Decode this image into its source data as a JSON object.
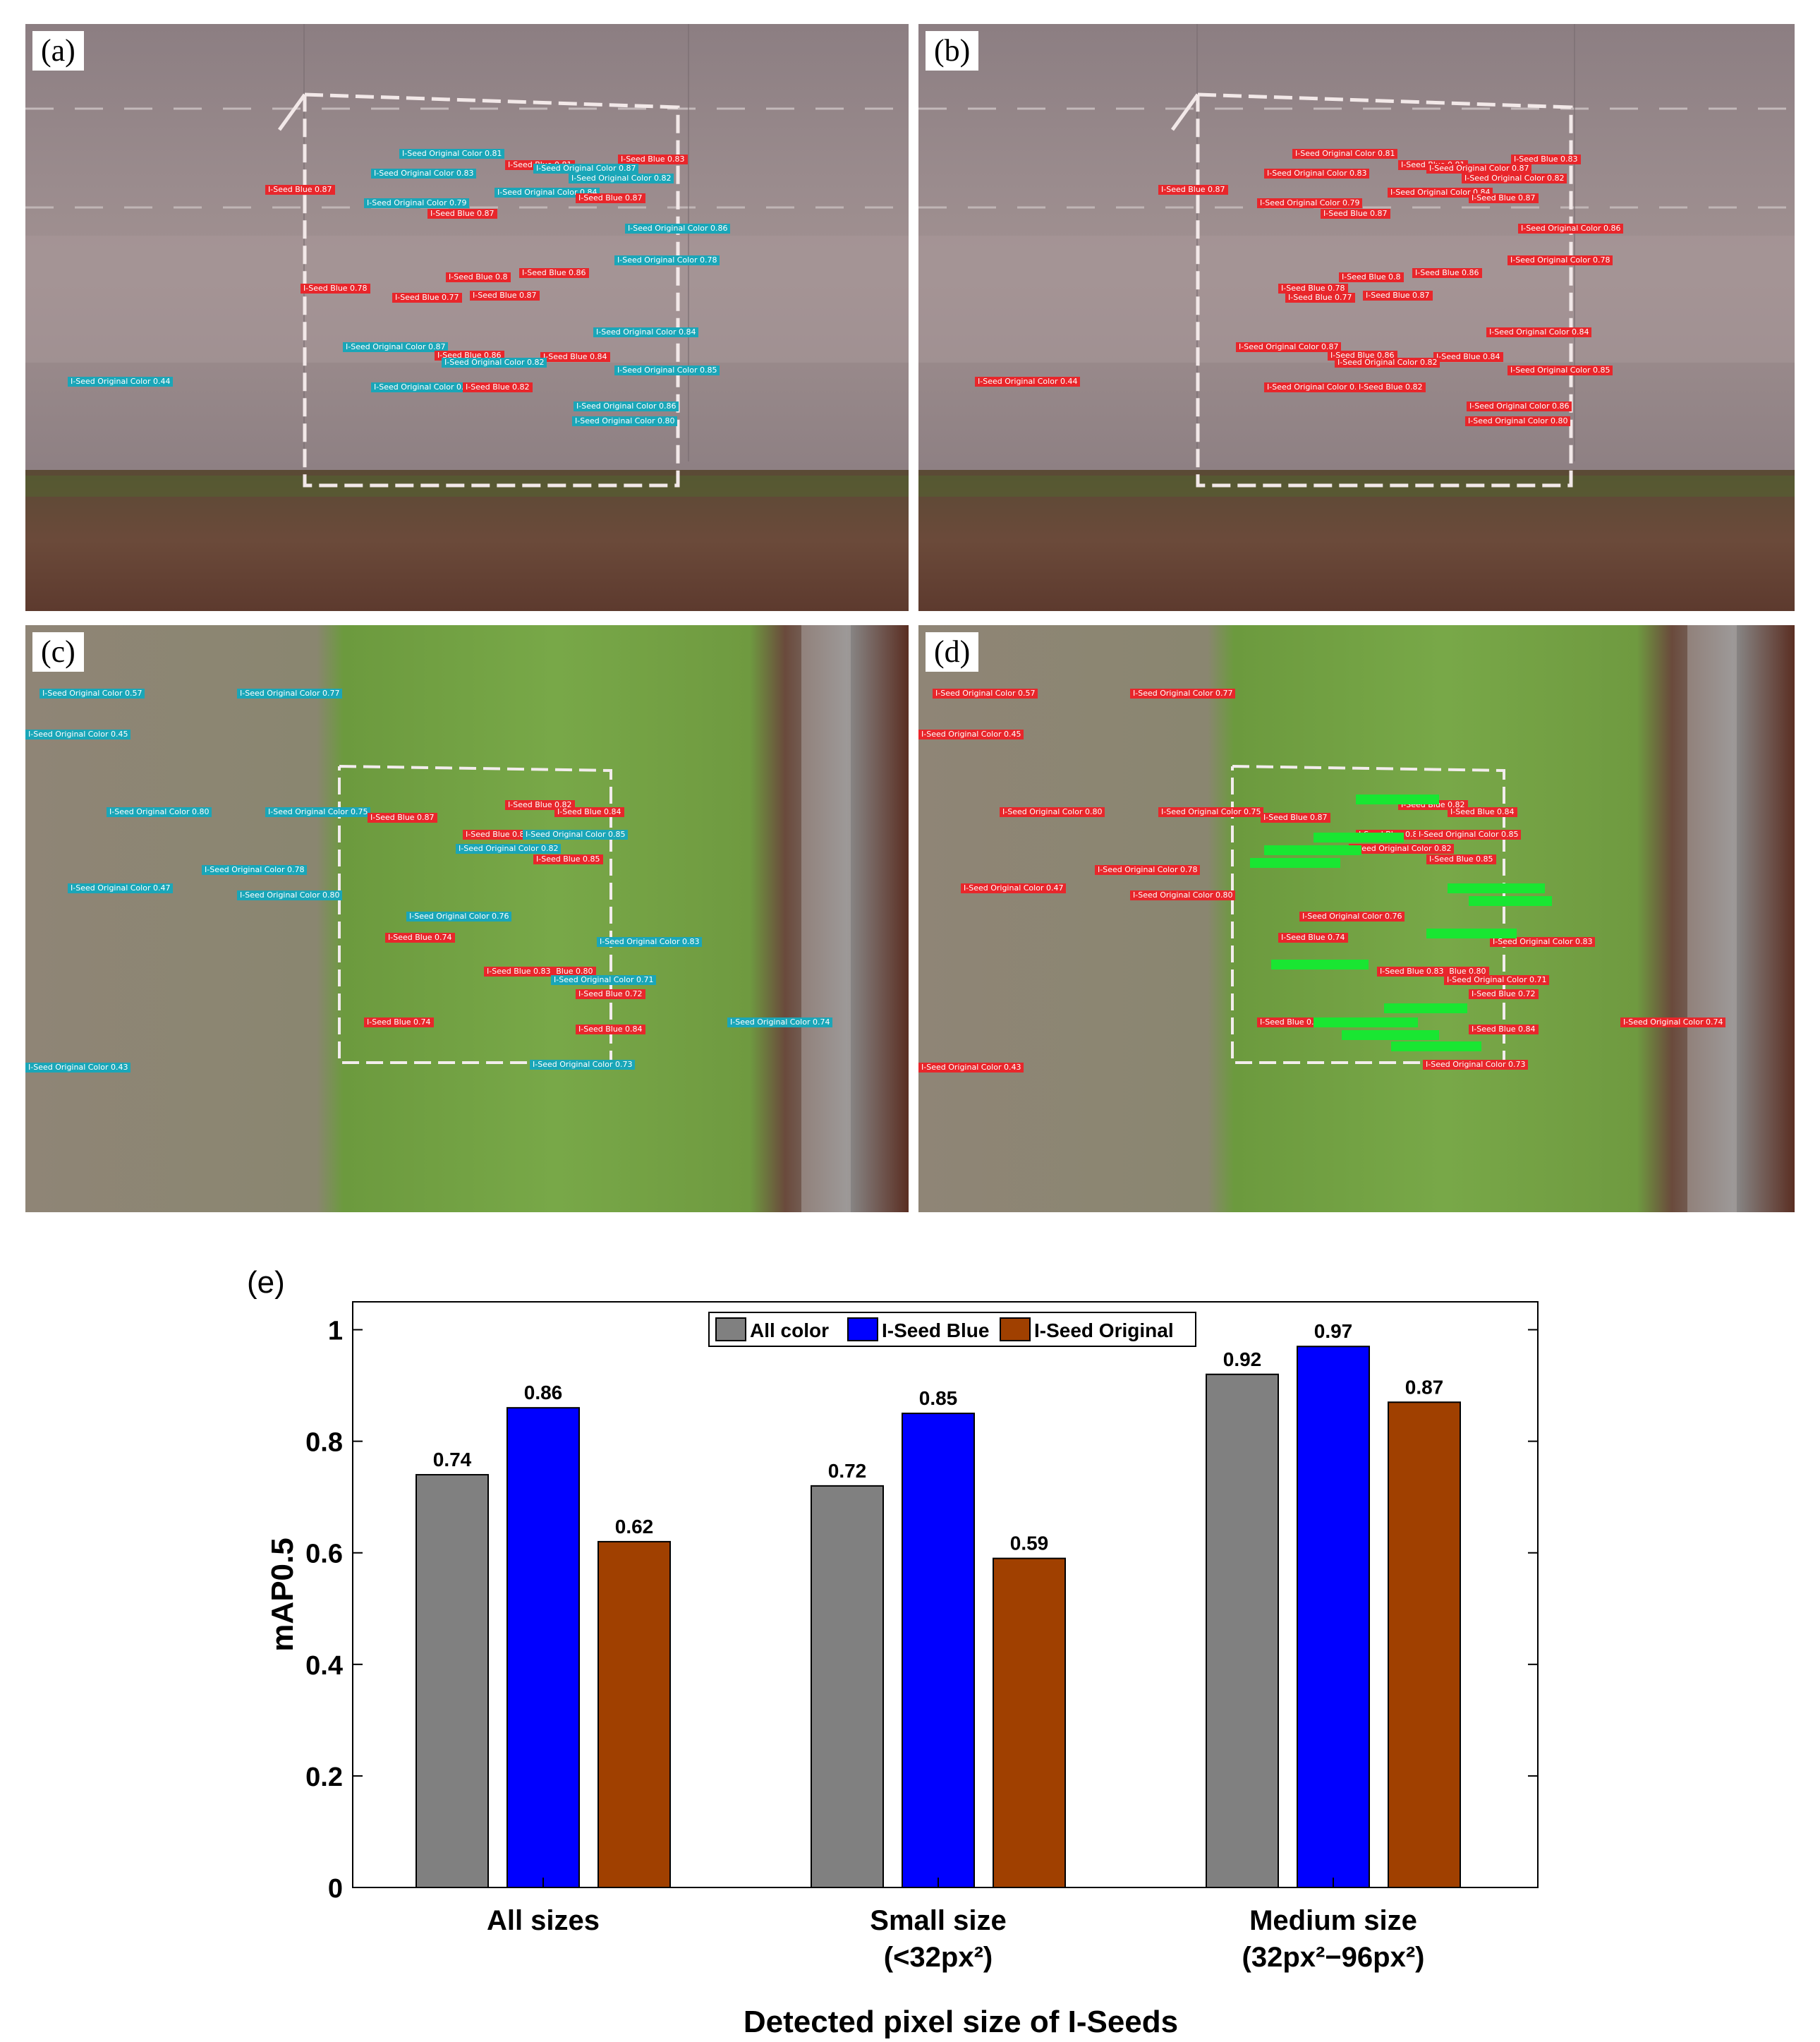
{
  "panels": {
    "a": {
      "label": "(a)",
      "detections": [
        {
          "cls": "cyan",
          "text": "I-Seed Original Color 0.81"
        },
        {
          "cls": "red",
          "text": "I-Seed Blue 0.81"
        },
        {
          "cls": "red",
          "text": "I-Seed Blue 0.83"
        },
        {
          "cls": "cyan",
          "text": "I-Seed Original Color 0.83"
        },
        {
          "cls": "cyan",
          "text": "I-Seed Original Color 0.87"
        },
        {
          "cls": "cyan",
          "text": "I-Seed Original Color 0.82"
        },
        {
          "cls": "red",
          "text": "I-Seed Blue 0.87"
        },
        {
          "cls": "cyan",
          "text": "I-Seed Original Color 0.84"
        },
        {
          "cls": "cyan",
          "text": "I-Seed Original Color 0.79"
        },
        {
          "cls": "red",
          "text": "I-Seed Blue 0.87"
        },
        {
          "cls": "red",
          "text": "I-Seed Blue 0.87"
        },
        {
          "cls": "cyan",
          "text": "I-Seed Original Color 0.86"
        },
        {
          "cls": "cyan",
          "text": "I-Seed Original Color 0.78"
        },
        {
          "cls": "red",
          "text": "I-Seed Blue 0.78"
        },
        {
          "cls": "red",
          "text": "I-Seed Blue 0.8"
        },
        {
          "cls": "red",
          "text": "I-Seed Blue 0.86"
        },
        {
          "cls": "red",
          "text": "I-Seed Blue 0.87"
        },
        {
          "cls": "red",
          "text": "I-Seed Blue 0.77"
        },
        {
          "cls": "cyan",
          "text": "I-Seed Original Color 0.84"
        },
        {
          "cls": "cyan",
          "text": "I-Seed Original Color 0.87"
        },
        {
          "cls": "red",
          "text": "I-Seed Blue 0.86"
        },
        {
          "cls": "red",
          "text": "I-Seed Blue 0.84"
        },
        {
          "cls": "cyan",
          "text": "I-Seed Original Color 0.82"
        },
        {
          "cls": "cyan",
          "text": "I-Seed Original Color 0.85"
        },
        {
          "cls": "cyan",
          "text": "I-Seed Original Color 0.44"
        },
        {
          "cls": "cyan",
          "text": "I-Seed Original Color 0.87"
        },
        {
          "cls": "red",
          "text": "I-Seed Blue 0.82"
        },
        {
          "cls": "cyan",
          "text": "I-Seed Original Color 0.86"
        },
        {
          "cls": "cyan",
          "text": "I-Seed Original Color 0.80"
        }
      ]
    },
    "b": {
      "label": "(b)",
      "detections": [
        {
          "cls": "red",
          "text": "I-Seed Original Color 0.81"
        },
        {
          "cls": "red",
          "text": "I-Seed Blue 0.81"
        },
        {
          "cls": "red",
          "text": "I-Seed Blue 0.83"
        },
        {
          "cls": "red",
          "text": "I-Seed Original Color 0.83"
        },
        {
          "cls": "red",
          "text": "I-Seed Original Color 0.87"
        },
        {
          "cls": "red",
          "text": "I-Seed Original Color 0.82"
        },
        {
          "cls": "red",
          "text": "I-Seed Blue 0.87"
        },
        {
          "cls": "red",
          "text": "I-Seed Original Color 0.84"
        },
        {
          "cls": "red",
          "text": "I-Seed Original Color 0.79"
        },
        {
          "cls": "red",
          "text": "I-Seed Blue 0.87"
        },
        {
          "cls": "red",
          "text": "I-Seed Blue 0.87"
        },
        {
          "cls": "red",
          "text": "I-Seed Original Color 0.86"
        },
        {
          "cls": "red",
          "text": "I-Seed Original Color 0.78"
        },
        {
          "cls": "red",
          "text": "I-Seed Blue 0.78"
        },
        {
          "cls": "red",
          "text": "I-Seed Blue 0.8"
        },
        {
          "cls": "red",
          "text": "I-Seed Blue 0.86"
        },
        {
          "cls": "red",
          "text": "I-Seed Blue 0.87"
        },
        {
          "cls": "red",
          "text": "I-Seed Blue 0.77"
        },
        {
          "cls": "red",
          "text": "I-Seed Original Color 0.84"
        },
        {
          "cls": "red",
          "text": "I-Seed Original Color 0.87"
        },
        {
          "cls": "red",
          "text": "I-Seed Blue 0.86"
        },
        {
          "cls": "red",
          "text": "I-Seed Blue 0.84"
        },
        {
          "cls": "red",
          "text": "I-Seed Original Color 0.82"
        },
        {
          "cls": "red",
          "text": "I-Seed Original Color 0.85"
        },
        {
          "cls": "red",
          "text": "I-Seed Original Color 0.44"
        },
        {
          "cls": "red",
          "text": "I-Seed Original Color 0.87"
        },
        {
          "cls": "red",
          "text": "I-Seed Blue 0.82"
        },
        {
          "cls": "red",
          "text": "I-Seed Original Color 0.86"
        },
        {
          "cls": "red",
          "text": "I-Seed Original Color 0.80"
        }
      ]
    },
    "c": {
      "label": "(c)",
      "detections": [
        {
          "cls": "cyan",
          "text": "I-Seed Original Color 0.57"
        },
        {
          "cls": "cyan",
          "text": "I-Seed Original Color 0.77"
        },
        {
          "cls": "cyan",
          "text": "I-Seed Original Color 0.45"
        },
        {
          "cls": "cyan",
          "text": "I-Seed Original Color 0.80"
        },
        {
          "cls": "cyan",
          "text": "I-Seed Original Color 0.75"
        },
        {
          "cls": "red",
          "text": "I-Seed Blue 0.87"
        },
        {
          "cls": "red",
          "text": "I-Seed Blue 0.82"
        },
        {
          "cls": "red",
          "text": "I-Seed Blue 0.84"
        },
        {
          "cls": "red",
          "text": "I-Seed Blue 0.83"
        },
        {
          "cls": "cyan",
          "text": "I-Seed Original Color 0.85"
        },
        {
          "cls": "cyan",
          "text": "I-Seed Original Color 0.82"
        },
        {
          "cls": "red",
          "text": "I-Seed Blue 0.85"
        },
        {
          "cls": "cyan",
          "text": "I-Seed Original Color 0.78"
        },
        {
          "cls": "cyan",
          "text": "I-Seed Original Color 0.47"
        },
        {
          "cls": "cyan",
          "text": "I-Seed Original Color 0.80"
        },
        {
          "cls": "cyan",
          "text": "I-Seed Original Color 0.76"
        },
        {
          "cls": "red",
          "text": "I-Seed Blue 0.74"
        },
        {
          "cls": "cyan",
          "text": "I-Seed Original Color 0.83"
        },
        {
          "cls": "red",
          "text": "I-Seed Blue 0.80"
        },
        {
          "cls": "red",
          "text": "I-Seed Blue 0.83"
        },
        {
          "cls": "cyan",
          "text": "I-Seed Original Color 0.71"
        },
        {
          "cls": "red",
          "text": "I-Seed Blue 0.72"
        },
        {
          "cls": "red",
          "text": "I-Seed Blue 0.74"
        },
        {
          "cls": "red",
          "text": "I-Seed Blue 0.84"
        },
        {
          "cls": "cyan",
          "text": "I-Seed Original Color 0.74"
        },
        {
          "cls": "cyan",
          "text": "I-Seed Original Color 0.43"
        },
        {
          "cls": "cyan",
          "text": "I-Seed Original Color 0.73"
        }
      ]
    },
    "d": {
      "label": "(d)",
      "detections": [
        {
          "cls": "red",
          "text": "I-Seed Original Color 0.57"
        },
        {
          "cls": "red",
          "text": "I-Seed Original Color 0.77"
        },
        {
          "cls": "red",
          "text": "I-Seed Original Color 0.45"
        },
        {
          "cls": "red",
          "text": "I-Seed Original Color 0.80"
        },
        {
          "cls": "red",
          "text": "I-Seed Original Color 0.75"
        },
        {
          "cls": "red",
          "text": "I-Seed Blue 0.87"
        },
        {
          "cls": "red",
          "text": "I-Seed Blue 0.82"
        },
        {
          "cls": "red",
          "text": "I-Seed Blue 0.84"
        },
        {
          "cls": "red",
          "text": "I-Seed Blue 0.83"
        },
        {
          "cls": "red",
          "text": "I-Seed Original Color 0.85"
        },
        {
          "cls": "red",
          "text": "I-Seed Original Color 0.82"
        },
        {
          "cls": "red",
          "text": "I-Seed Blue 0.85"
        },
        {
          "cls": "red",
          "text": "I-Seed Original Color 0.78"
        },
        {
          "cls": "red",
          "text": "I-Seed Original Color 0.47"
        },
        {
          "cls": "red",
          "text": "I-Seed Original Color 0.80"
        },
        {
          "cls": "red",
          "text": "I-Seed Original Color 0.76"
        },
        {
          "cls": "red",
          "text": "I-Seed Blue 0.74"
        },
        {
          "cls": "red",
          "text": "I-Seed Original Color 0.83"
        },
        {
          "cls": "red",
          "text": "I-Seed Blue 0.80"
        },
        {
          "cls": "red",
          "text": "I-Seed Blue 0.83"
        },
        {
          "cls": "red",
          "text": "I-Seed Original Color 0.71"
        },
        {
          "cls": "red",
          "text": "I-Seed Blue 0.72"
        },
        {
          "cls": "red",
          "text": "I-Seed Blue 0.74"
        },
        {
          "cls": "red",
          "text": "I-Seed Blue 0.84"
        },
        {
          "cls": "red",
          "text": "I-Seed Original Color 0.74"
        },
        {
          "cls": "red",
          "text": "I-Seed Original Color 0.43"
        },
        {
          "cls": "red",
          "text": "I-Seed Original Color 0.73"
        }
      ]
    }
  },
  "chart_panel_label": "(e)",
  "chart_data": {
    "type": "bar",
    "title": "",
    "xlabel": "Detected pixel size of I-Seeds",
    "ylabel": "mAP0.5",
    "ylim": [
      0,
      1.05
    ],
    "yticks": [
      "0",
      "0.2",
      "0.4",
      "0.6",
      "0.8",
      "1"
    ],
    "categories": [
      {
        "line1": "All sizes",
        "line2": ""
      },
      {
        "line1": "Small size",
        "line2": "(<32px²)"
      },
      {
        "line1": "Medium size",
        "line2": "(32px²−96px²)"
      }
    ],
    "series": [
      {
        "name": "All color",
        "color": "#808080",
        "values": [
          0.74,
          0.72,
          0.92
        ],
        "labels": [
          "0.74",
          "0.72",
          "0.92"
        ]
      },
      {
        "name": "I-Seed Blue",
        "color": "#0000ff",
        "values": [
          0.86,
          0.85,
          0.97
        ],
        "labels": [
          "0.86",
          "0.85",
          "0.97"
        ]
      },
      {
        "name": "I-Seed Original",
        "color": "#a04000",
        "values": [
          0.62,
          0.59,
          0.87
        ],
        "labels": [
          "0.62",
          "0.59",
          "0.87"
        ]
      }
    ],
    "legend_position": "top-center"
  }
}
